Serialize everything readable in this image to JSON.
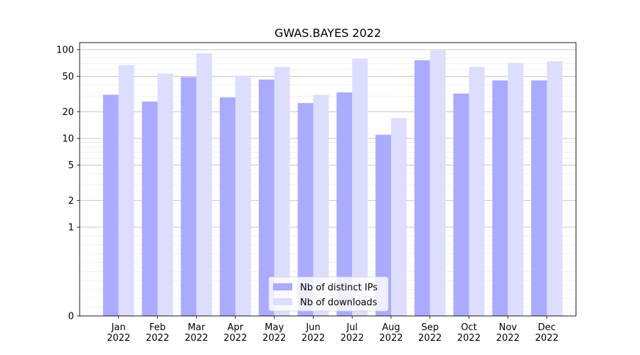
{
  "chart_data": {
    "type": "bar",
    "title": "GWAS.BAYES 2022",
    "xlabel": "",
    "ylabel": "",
    "yscale": "symlog",
    "ylim": [
      0,
      120
    ],
    "yticks": [
      0,
      1,
      2,
      5,
      10,
      20,
      50,
      100
    ],
    "grid": true,
    "legend_position": "bottom-center",
    "categories": [
      [
        "Jan",
        "2022"
      ],
      [
        "Feb",
        "2022"
      ],
      [
        "Mar",
        "2022"
      ],
      [
        "Apr",
        "2022"
      ],
      [
        "May",
        "2022"
      ],
      [
        "Jun",
        "2022"
      ],
      [
        "Jul",
        "2022"
      ],
      [
        "Aug",
        "2022"
      ],
      [
        "Sep",
        "2022"
      ],
      [
        "Oct",
        "2022"
      ],
      [
        "Nov",
        "2022"
      ],
      [
        "Dec",
        "2022"
      ]
    ],
    "series": [
      {
        "name": "Nb of distinct IPs",
        "color": "#aaaaff",
        "values": [
          31,
          26,
          49,
          29,
          46,
          25,
          33,
          11,
          76,
          32,
          45,
          45
        ]
      },
      {
        "name": "Nb of downloads",
        "color": "#ddddff",
        "values": [
          67,
          54,
          91,
          51,
          64,
          31,
          79,
          17,
          98,
          64,
          71,
          74
        ]
      }
    ]
  }
}
